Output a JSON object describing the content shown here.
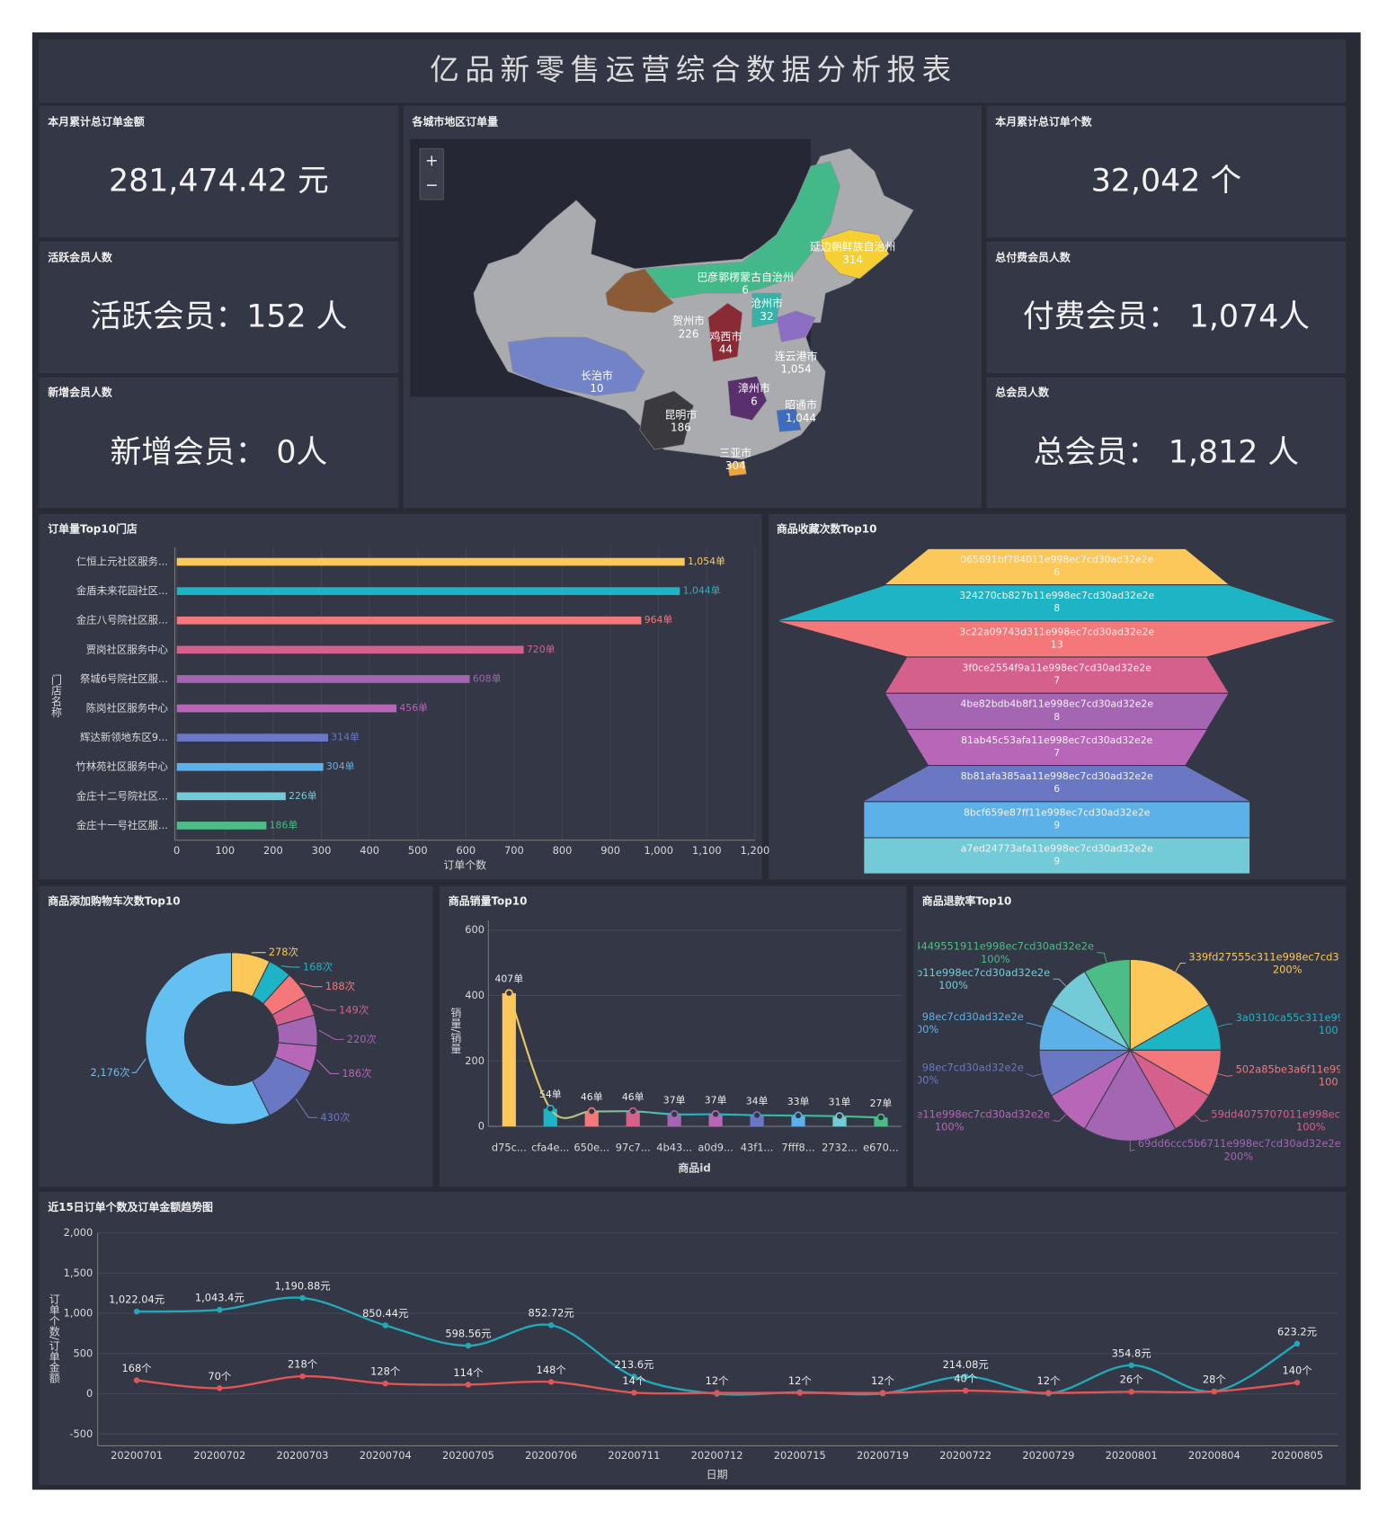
{
  "header": {
    "title": "亿品新零售运营综合数据分析报表"
  },
  "kpis": [
    {
      "title": "本月累计总订单金额",
      "value": "281,474.42 元"
    },
    {
      "title": "活跃会员人数",
      "value": "活跃会员：152 人"
    },
    {
      "title": "新增会员人数",
      "value": "新增会员： 0人"
    },
    {
      "title": "本月累计总订单个数",
      "value": "32,042 个"
    },
    {
      "title": "总付费会员人数",
      "value": "付费会员： 1,074人"
    },
    {
      "title": "总会员人数",
      "value": "总会员： 1,812 人"
    }
  ],
  "map": {
    "title": "各城市地区订单量",
    "zoom_in": "+",
    "zoom_out": "−",
    "regions": [
      {
        "name": "延边朝鲜族自治州",
        "value": 314,
        "value_label": "314"
      },
      {
        "name": "巴彦郭楞蒙古自治州",
        "value": 6,
        "value_label": "6"
      },
      {
        "name": "沧州市",
        "value": 32,
        "value_label": "32"
      },
      {
        "name": "贺州市",
        "value": 226,
        "value_label": "226"
      },
      {
        "name": "鸡西市",
        "value": 44,
        "value_label": "44"
      },
      {
        "name": "连云港市",
        "value": 1054,
        "value_label": "1,054"
      },
      {
        "name": "长治市",
        "value": 10,
        "value_label": "10"
      },
      {
        "name": "漳州市",
        "value": 6,
        "value_label": "6"
      },
      {
        "name": "昭通市",
        "value": 1044,
        "value_label": "1,044"
      },
      {
        "name": "昆明市",
        "value": 186,
        "value_label": "186"
      },
      {
        "name": "三亚市",
        "value": 304,
        "value_label": "304"
      }
    ]
  },
  "chart_data": [
    {
      "type": "hbar",
      "title": "订单量Top10门店",
      "categories": [
        "仁恒上元社区服务...",
        "金盾未来花园社区...",
        "金庄八号院社区服...",
        "贾岗社区服务中心",
        "祭城6号院社区服...",
        "陈岗社区服务中心",
        "辉达新领地东区9...",
        "竹林苑社区服务中心",
        "金庄十二号院社区...",
        "金庄十一号社区服..."
      ],
      "values": [
        1054,
        1044,
        964,
        720,
        608,
        456,
        314,
        304,
        226,
        186
      ],
      "value_labels": [
        "1,054单",
        "1,044单",
        "964单",
        "720单",
        "608单",
        "456单",
        "314单",
        "304单",
        "226单",
        "186单"
      ],
      "colors": [
        "#fcc85a",
        "#1db5c6",
        "#f4787a",
        "#d6608c",
        "#a466b3",
        "#b766b8",
        "#6a78c4",
        "#5cb2e8",
        "#74cbd8",
        "#4cbd86"
      ],
      "xlim": [
        0,
        1200
      ],
      "xticks": [
        0,
        100,
        200,
        300,
        400,
        500,
        600,
        700,
        800,
        900,
        {
          "value": 1000,
          "label": "1,000"
        },
        {
          "value": 1100,
          "label": "1,100"
        },
        {
          "value": 1200,
          "label": "1,200"
        }
      ],
      "xlabel": "订单个数",
      "ylabel": "门店名称",
      "grid": true
    },
    {
      "type": "funnel",
      "title": "商品收藏次数Top10",
      "categories": [
        "065691bf784011e998ec7cd30ad32e2e",
        "324270cb827b11e998ec7cd30ad32e2e",
        "3c22a09743d311e998ec7cd30ad32e2e",
        "3f0ce2554f9a11e998ec7cd30ad32e2e",
        "4be82bdb4b8f11e998ec7cd30ad32e2e",
        "81ab45c53afa11e998ec7cd30ad32e2e",
        "8b81afa385aa11e998ec7cd30ad32e2e",
        "8bcf659e87ff11e998ec7cd30ad32e2e",
        "a7ed24773afa11e998ec7cd30ad32e2e"
      ],
      "values": [
        6,
        8,
        13,
        7,
        8,
        7,
        6,
        9,
        9
      ],
      "colors": [
        "#fcc85a",
        "#1db5c6",
        "#f4787a",
        "#d6608c",
        "#a466b3",
        "#b766b8",
        "#6a78c4",
        "#5cb2e8",
        "#74cbd8"
      ]
    },
    {
      "type": "donut",
      "title": "商品添加购物车次数Top10",
      "values": [
        278,
        168,
        188,
        149,
        220,
        186,
        430,
        2176
      ],
      "value_labels": [
        "278次",
        "168次",
        "188次",
        "149次",
        "220次",
        "186次",
        "430次",
        "2,176次"
      ],
      "colors": [
        "#fcc85a",
        "#1db5c6",
        "#f4787a",
        "#d6608c",
        "#a466b3",
        "#b766b8",
        "#6a78c4",
        "#64c0f0"
      ]
    },
    {
      "type": "vbar",
      "title": "商品销量Top10",
      "categories": [
        "d75c...",
        "cfa4e...",
        "650e...",
        "97c7...",
        "4b43...",
        "a0d9...",
        "43f1...",
        "7fff8...",
        "2732...",
        "e670..."
      ],
      "values": [
        407,
        54,
        46,
        46,
        37,
        37,
        34,
        33,
        31,
        27
      ],
      "value_labels": [
        "407单",
        "54单",
        "46单",
        "46单",
        "37单",
        "37单",
        "34单",
        "33单",
        "31单",
        "27单"
      ],
      "colors": [
        "#fcc85a",
        "#1db5c6",
        "#f4787a",
        "#d6608c",
        "#a466b3",
        "#b766b8",
        "#6a78c4",
        "#5cb2e8",
        "#74cbd8",
        "#4cbd86"
      ],
      "ylim": [
        0,
        600
      ],
      "yticks": [
        0,
        200,
        400,
        600
      ],
      "xlabel": "商品id",
      "ylabel": "销量/销量",
      "grid": true,
      "trend_line": true
    },
    {
      "type": "pie",
      "title": "商品退款率Top10",
      "categories": [
        "339fd27555c311e998ec7cd3",
        "3a0310ca55c311e99",
        "502a85be3a6f11e99",
        "59dd4075707011e998ec7",
        "69dd6ccc5b6711e998ec7cd30ad32e2e",
        "e11e998ec7cd30ad32e2e",
        "98ec7cd30ad32e2e",
        "98ec7cd30ad32e2e",
        "b11e998ec7cd30ad32e2e",
        "4449551911e998ec7cd30ad32e2e"
      ],
      "values": [
        200,
        100,
        100,
        100,
        200,
        100,
        100,
        100,
        100,
        100
      ],
      "value_labels": [
        "200%",
        "100",
        "100",
        "100%",
        "200%",
        "100%",
        "100%",
        "100%",
        "100%",
        "100%"
      ],
      "colors": [
        "#fcc85a",
        "#1db5c6",
        "#f4787a",
        "#d6608c",
        "#a466b3",
        "#b766b8",
        "#6a78c4",
        "#5cb2e8",
        "#74cbd8",
        "#4cbd86"
      ]
    },
    {
      "type": "line",
      "title": "近15日订单个数及订单金额趋势图",
      "x": [
        "20200701",
        "20200702",
        "20200703",
        "20200704",
        "20200705",
        "20200706",
        "20200711",
        "20200712",
        "20200715",
        "20200719",
        "20200722",
        "20200729",
        "20200801",
        "20200804",
        "20200805"
      ],
      "series": [
        {
          "color": "#22a8b7",
          "values": [
            1022.04,
            1043.4,
            1190.88,
            850.44,
            598.56,
            852.72,
            213.6,
            0,
            20,
            5,
            214.08,
            5,
            354.8,
            30,
            623.2
          ],
          "value_labels": [
            "1,022.04元",
            "1,043.4元",
            "1,190.88元",
            "850.44元",
            "598.56元",
            "852.72元",
            "213.6元",
            null,
            null,
            null,
            "214.08元",
            null,
            "354.8元",
            null,
            "623.2元"
          ]
        },
        {
          "color": "#e05555",
          "values": [
            168,
            70,
            218,
            128,
            114,
            148,
            14,
            12,
            12,
            12,
            40,
            12,
            26,
            28,
            140
          ],
          "value_labels": [
            "168个",
            "70个",
            "218个",
            "128个",
            "114个",
            "148个",
            "14个",
            "12个",
            "12个",
            "12个",
            "40个",
            "12个",
            "26个",
            "28个",
            "140个"
          ]
        }
      ],
      "ylim": [
        -500,
        2000
      ],
      "yticks": [
        -500,
        0,
        500,
        {
          "value": 1000,
          "label": "1,000"
        },
        {
          "value": 1500,
          "label": "1,500"
        },
        {
          "value": 2000,
          "label": "2,000"
        }
      ],
      "xlabel": "日期",
      "ylabel": "订单个数/订单金额",
      "grid": true
    }
  ]
}
